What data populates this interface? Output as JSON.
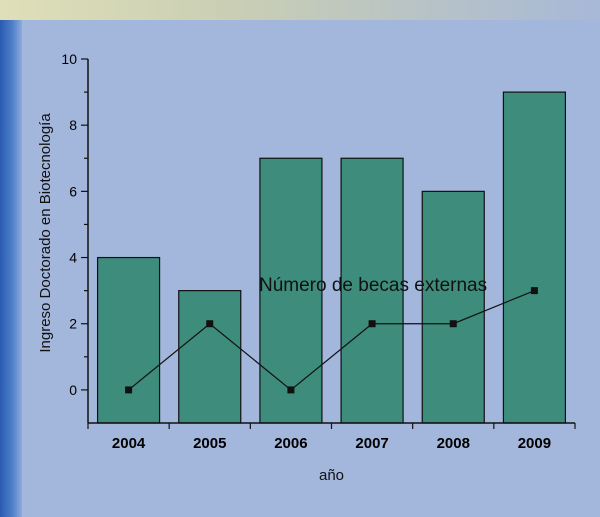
{
  "chart_data": {
    "type": "bar",
    "categories": [
      "2004",
      "2005",
      "2006",
      "2007",
      "2008",
      "2009"
    ],
    "series": [
      {
        "values": [
          4,
          3,
          7,
          7,
          6,
          9
        ],
        "color": "#3e8c7c",
        "type": "bar"
      },
      {
        "values": [
          0,
          2,
          0,
          2,
          2,
          3
        ],
        "color": "#111111",
        "type": "line"
      }
    ],
    "ylabel": "Ingreso Doctorado en Biotecnología",
    "xlabel": "año",
    "annotation": "Número de becas externas",
    "ylim": [
      -1,
      10
    ],
    "yticks": [
      0,
      2,
      4,
      6,
      8,
      10
    ],
    "grid": false
  }
}
